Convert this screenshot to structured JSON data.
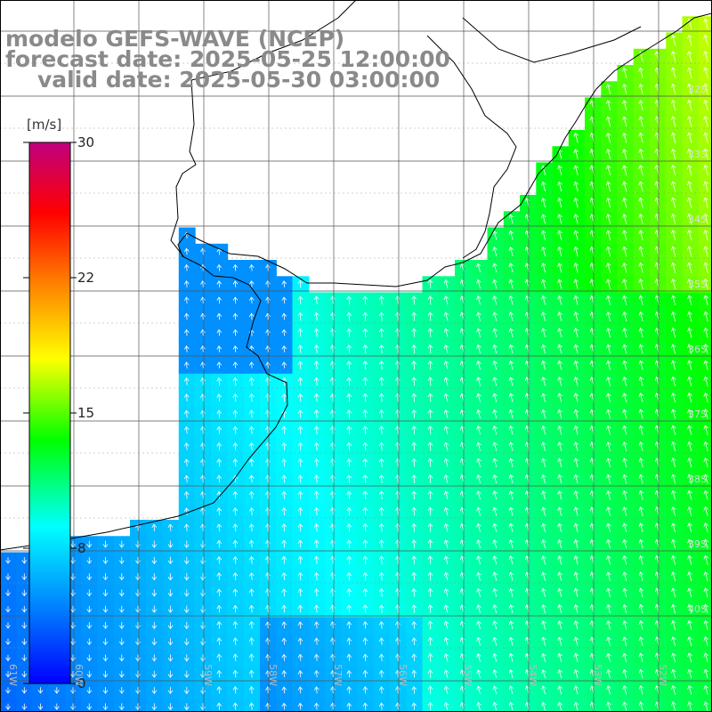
{
  "title": {
    "model": "modelo GEFS-WAVE (NCEP)",
    "forecast": "forecast date: 2025-05-25 12:00:00",
    "valid": "valid date: 2025-05-30 03:00:00"
  },
  "colorbar": {
    "unit": "[m/s]",
    "ticks": [
      "30",
      "22",
      "15",
      "8",
      "0"
    ],
    "colors": [
      "#0000ff",
      "#0080ff",
      "#00ffff",
      "#00ff00",
      "#ffff00",
      "#ff8000",
      "#ff0000",
      "#c0007f"
    ]
  },
  "axes": {
    "lon_labels": [
      "61W",
      "60W",
      "59W",
      "58W",
      "57W",
      "56W",
      "55W",
      "54W",
      "53W",
      "52W",
      "51W"
    ],
    "lat_labels": [
      "32S",
      "33S",
      "34S",
      "35S",
      "36S",
      "37S",
      "38S",
      "39S",
      "40S"
    ]
  },
  "map": {
    "field": "wind speed with direction arrows",
    "land_color": "#ffffff",
    "grid": true,
    "coastline_color": "#000000",
    "arrow_color": "#ffffff"
  }
}
